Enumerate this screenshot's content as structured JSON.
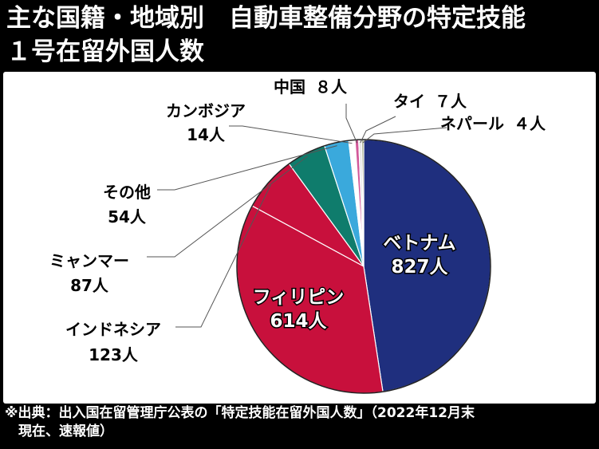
{
  "title": {
    "line1": "主な国籍・地域別　自動車整備分野の特定技能",
    "line2": "１号在留外国人数"
  },
  "source": {
    "line1": "※出典：出入国在留管理庁公表の「特定技能在留外国人数」（2022年12月末",
    "line2": "　現在、速報値）"
  },
  "chart_data": {
    "type": "pie",
    "start": "12 o'clock",
    "direction": "clockwise",
    "slices": [
      {
        "name": "ベトナム",
        "value": 827,
        "value_label": "827人",
        "color": "#1f2f7e"
      },
      {
        "name": "フィリピン",
        "value": 614,
        "value_label": "614人",
        "color": "#c8103c"
      },
      {
        "name": "インドネシア",
        "value": 123,
        "value_label": "123人",
        "color": "#c8103c"
      },
      {
        "name": "ミャンマー",
        "value": 87,
        "value_label": "87人",
        "color": "#0f7c6c"
      },
      {
        "name": "その他",
        "value": 54,
        "value_label": "54人",
        "color": "#3aa9dc"
      },
      {
        "name": "カンボジア",
        "value": 14,
        "value_label": "14人",
        "color": "#ffffff"
      },
      {
        "name": "中国",
        "value": 8,
        "value_label": "８人",
        "color": "#d2589a"
      },
      {
        "name": "タイ",
        "value": 7,
        "value_label": "７人",
        "color": "#e8e8e8"
      },
      {
        "name": "ネパール",
        "value": 4,
        "value_label": "４人",
        "color": "#7f8a5a"
      }
    ]
  }
}
